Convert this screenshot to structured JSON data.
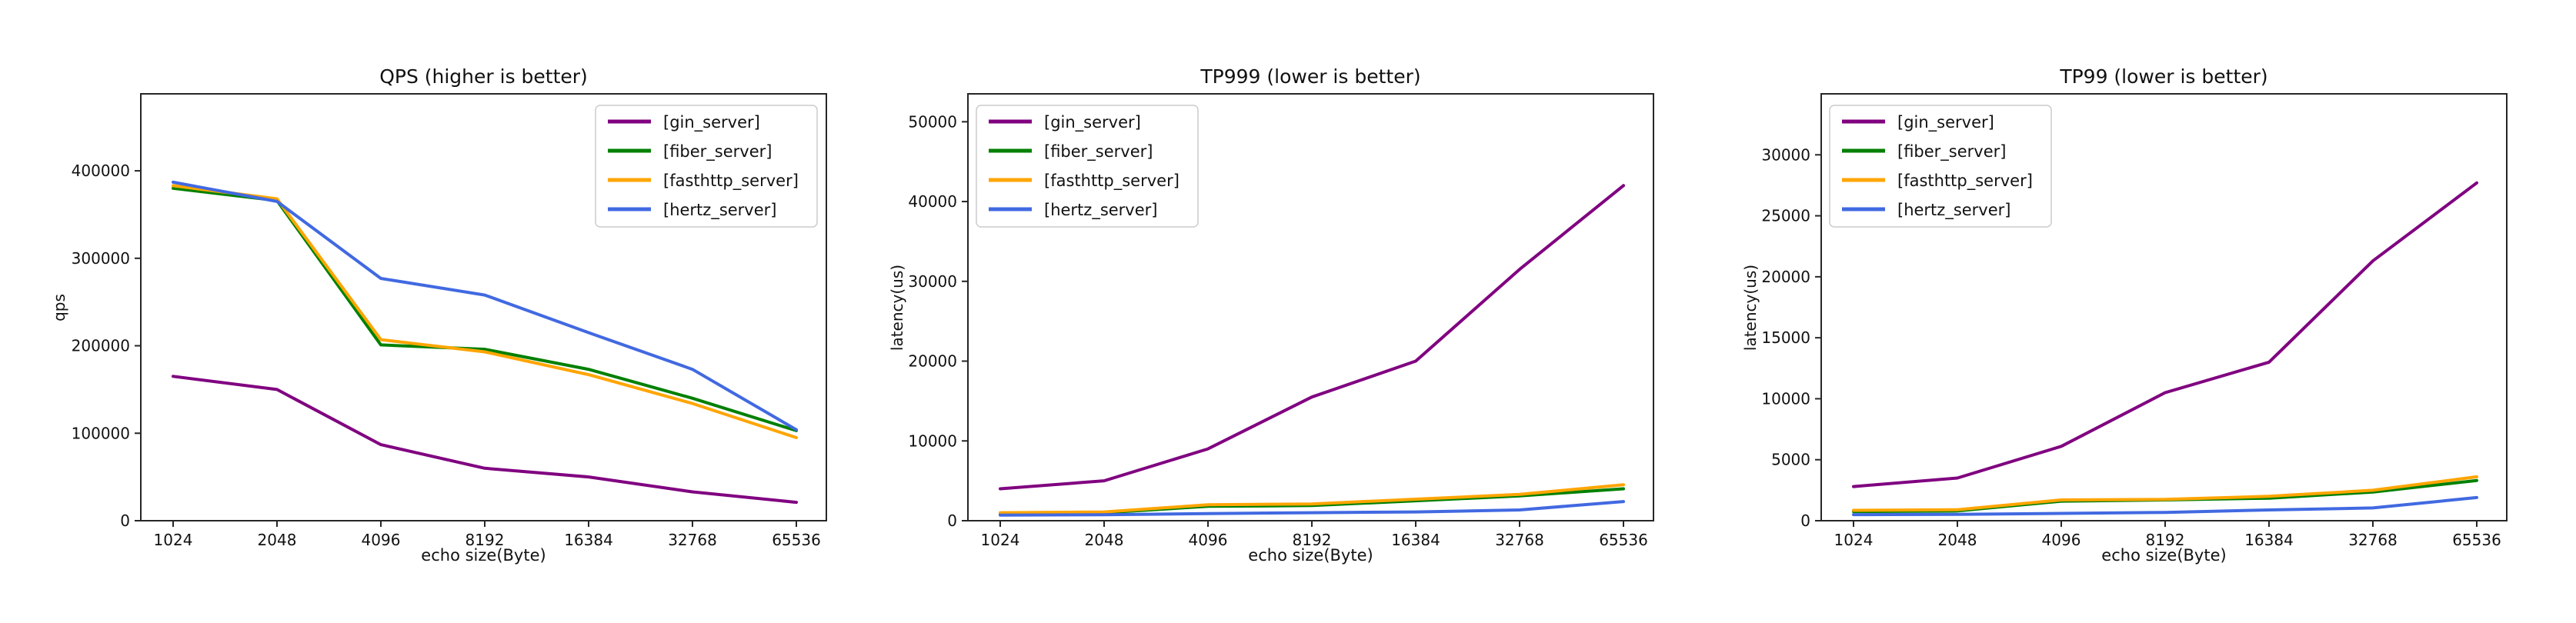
{
  "figure": {
    "background_color": "#ffffff",
    "axis_color": "#262626",
    "text_color": "#111111"
  },
  "chart_data": [
    {
      "type": "line",
      "title": "QPS (higher is better)",
      "xlabel": "echo size(Byte)",
      "ylabel": "qps",
      "x_categories": [
        "1024",
        "2048",
        "4096",
        "8192",
        "16384",
        "32768",
        "65536"
      ],
      "yticks": [
        0,
        100000,
        200000,
        300000,
        400000
      ],
      "ylim": [
        0,
        488000
      ],
      "grid": false,
      "legend_position": "upper right",
      "series": [
        {
          "name": "[gin_server]",
          "color": "#800080",
          "values": [
            165000,
            150000,
            87000,
            60000,
            50000,
            33000,
            21000
          ]
        },
        {
          "name": "[fiber_server]",
          "color": "#008000",
          "values": [
            380000,
            366000,
            201000,
            196000,
            173000,
            140000,
            103000
          ]
        },
        {
          "name": "[fasthttp_server]",
          "color": "#FFA500",
          "values": [
            383000,
            368000,
            207000,
            193000,
            167000,
            134000,
            95000
          ]
        },
        {
          "name": "[hertz_server]",
          "color": "#4169E1",
          "values": [
            387000,
            365000,
            277000,
            258000,
            215000,
            173000,
            104000
          ]
        }
      ]
    },
    {
      "type": "line",
      "title": "TP999 (lower is better)",
      "xlabel": "echo size(Byte)",
      "ylabel": "latency(us)",
      "x_categories": [
        "1024",
        "2048",
        "4096",
        "8192",
        "16384",
        "32768",
        "65536"
      ],
      "yticks": [
        0,
        10000,
        20000,
        30000,
        40000,
        50000
      ],
      "ylim": [
        0,
        53500
      ],
      "grid": false,
      "legend_position": "upper left",
      "series": [
        {
          "name": "[gin_server]",
          "color": "#800080",
          "values": [
            4000,
            5000,
            9000,
            15500,
            20000,
            31500,
            42000
          ]
        },
        {
          "name": "[fiber_server]",
          "color": "#008000",
          "values": [
            900,
            1000,
            1800,
            1900,
            2500,
            3100,
            4000
          ]
        },
        {
          "name": "[fasthttp_server]",
          "color": "#FFA500",
          "values": [
            1000,
            1100,
            2000,
            2100,
            2700,
            3300,
            4500
          ]
        },
        {
          "name": "[hertz_server]",
          "color": "#4169E1",
          "values": [
            700,
            750,
            900,
            1000,
            1100,
            1350,
            2400
          ]
        }
      ]
    },
    {
      "type": "line",
      "title": "TP99 (lower is better)",
      "xlabel": "echo size(Byte)",
      "ylabel": "latency(us)",
      "x_categories": [
        "1024",
        "2048",
        "4096",
        "8192",
        "16384",
        "32768",
        "65536"
      ],
      "yticks": [
        0,
        5000,
        10000,
        15000,
        20000,
        25000,
        30000
      ],
      "ylim": [
        0,
        35000
      ],
      "grid": false,
      "legend_position": "upper left",
      "series": [
        {
          "name": "[gin_server]",
          "color": "#800080",
          "values": [
            2800,
            3500,
            6100,
            10500,
            13000,
            21300,
            27700
          ]
        },
        {
          "name": "[fiber_server]",
          "color": "#008000",
          "values": [
            750,
            800,
            1600,
            1700,
            1850,
            2350,
            3300
          ]
        },
        {
          "name": "[fasthttp_server]",
          "color": "#FFA500",
          "values": [
            850,
            900,
            1700,
            1750,
            2000,
            2500,
            3600
          ]
        },
        {
          "name": "[hertz_server]",
          "color": "#4169E1",
          "values": [
            500,
            520,
            600,
            680,
            880,
            1050,
            1900
          ]
        }
      ]
    }
  ]
}
